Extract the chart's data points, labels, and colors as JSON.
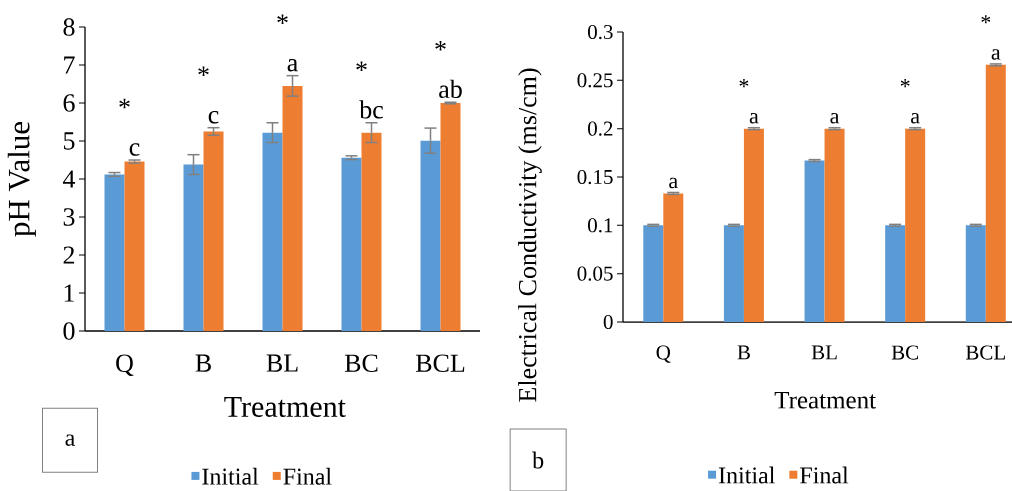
{
  "chart_data": [
    {
      "type": "bar",
      "xlabel": "Treatment",
      "ylabel": "pH Value",
      "categories": [
        "Q",
        "B",
        "BL",
        "BC",
        "BCL"
      ],
      "ylim": [
        0,
        8
      ],
      "yticks": [
        0,
        1,
        2,
        3,
        4,
        5,
        6,
        7,
        8
      ],
      "legend": "bottom",
      "series": [
        {
          "name": "Initial",
          "color": "#5b9bd5",
          "values": [
            4.12,
            4.38,
            5.22,
            4.56,
            5.01
          ],
          "errors": [
            0.05,
            0.26,
            0.26,
            0.05,
            0.33
          ]
        },
        {
          "name": "Final",
          "color": "#ed7d31",
          "values": [
            4.46,
            5.25,
            6.45,
            5.22,
            6.0
          ],
          "errors": [
            0.04,
            0.1,
            0.27,
            0.26,
            0.02
          ]
        }
      ],
      "annotations": [
        "*",
        {
          "text": "c",
          "x": "Q",
          "y": 4.46
        },
        "*",
        {
          "text": "c",
          "x": "B",
          "y": 5.25
        },
        "*",
        {
          "text": "a",
          "x": "BL",
          "y": 6.45
        },
        "*",
        {
          "text": "bc",
          "x": "BC",
          "y": 5.22
        },
        "*",
        {
          "text": "ab",
          "x": "BCL",
          "y": 6.0
        },
        "a"
      ]
    },
    {
      "type": "bar",
      "xlabel": "Treatment",
      "ylabel": "Electrical Conductivity (ms/cm)",
      "categories": [
        "Q",
        "B",
        "BL",
        "BC",
        "BCL"
      ],
      "ylim": [
        0,
        0.3
      ],
      "yticks": [
        0,
        0.05,
        0.1,
        0.15,
        0.2,
        0.25,
        0.3
      ],
      "legend": "bottom",
      "series": [
        {
          "name": "Initial",
          "color": "#5b9bd5",
          "values": [
            0.1,
            0.1,
            0.167,
            0.1,
            0.1
          ],
          "errors": [
            0.001,
            0.001,
            0.001,
            0.001,
            0.001
          ]
        },
        {
          "name": "Final",
          "color": "#ed7d31",
          "values": [
            0.133,
            0.2,
            0.2,
            0.2,
            0.266
          ],
          "errors": [
            0.001,
            0.001,
            0.001,
            0.001,
            0.001
          ]
        }
      ],
      "annotations": [
        {
          "text": "a",
          "x": "Q",
          "y": 0.133
        },
        "*",
        {
          "text": "a",
          "x": "B",
          "y": 0.2
        },
        {
          "text": "a",
          "x": "BL",
          "y": 0.2
        },
        "*",
        {
          "text": "a",
          "x": "BC",
          "y": 0.2
        },
        "*",
        {
          "text": "a",
          "x": "BCL",
          "y": 0.266
        },
        "b"
      ]
    }
  ]
}
